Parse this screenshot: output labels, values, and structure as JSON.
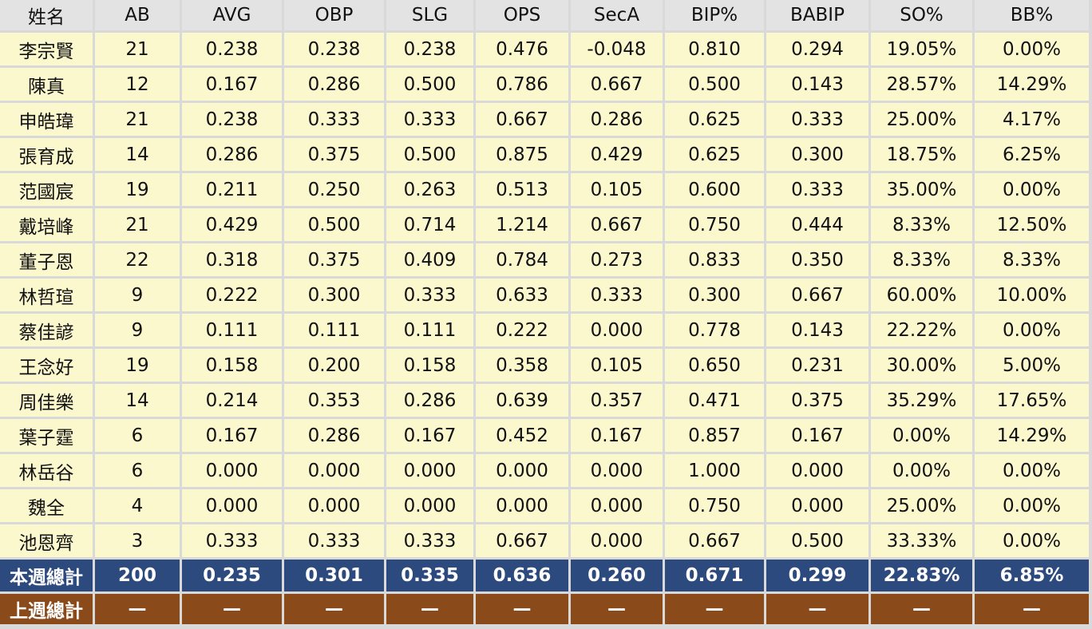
{
  "headers": [
    "姓名",
    "AB",
    "AVG",
    "OBP",
    "SLG",
    "OPS",
    "SecA",
    "BIP%",
    "BABIP",
    "SO%",
    "BB%"
  ],
  "rows": [
    [
      "李宗賢",
      "21",
      "0.238",
      "0.238",
      "0.238",
      "0.476",
      "-0.048",
      "0.810",
      "0.294",
      "19.05%",
      "0.00%"
    ],
    [
      "陳真",
      "12",
      "0.167",
      "0.286",
      "0.500",
      "0.786",
      "0.667",
      "0.500",
      "0.143",
      "28.57%",
      "14.29%"
    ],
    [
      "申皓瑋",
      "21",
      "0.238",
      "0.333",
      "0.333",
      "0.667",
      "0.286",
      "0.625",
      "0.333",
      "25.00%",
      "4.17%"
    ],
    [
      "張育成",
      "14",
      "0.286",
      "0.375",
      "0.500",
      "0.875",
      "0.429",
      "0.625",
      "0.300",
      "18.75%",
      "6.25%"
    ],
    [
      "范國宸",
      "19",
      "0.211",
      "0.250",
      "0.263",
      "0.513",
      "0.105",
      "0.600",
      "0.333",
      "35.00%",
      "0.00%"
    ],
    [
      "戴培峰",
      "21",
      "0.429",
      "0.500",
      "0.714",
      "1.214",
      "0.667",
      "0.750",
      "0.444",
      "8.33%",
      "12.50%"
    ],
    [
      "董子恩",
      "22",
      "0.318",
      "0.375",
      "0.409",
      "0.784",
      "0.273",
      "0.833",
      "0.350",
      "8.33%",
      "8.33%"
    ],
    [
      "林哲瑄",
      "9",
      "0.222",
      "0.300",
      "0.333",
      "0.633",
      "0.333",
      "0.300",
      "0.667",
      "60.00%",
      "10.00%"
    ],
    [
      "蔡佳諺",
      "9",
      "0.111",
      "0.111",
      "0.111",
      "0.222",
      "0.000",
      "0.778",
      "0.143",
      "22.22%",
      "0.00%"
    ],
    [
      "王念好",
      "19",
      "0.158",
      "0.200",
      "0.158",
      "0.358",
      "0.105",
      "0.650",
      "0.231",
      "30.00%",
      "5.00%"
    ],
    [
      "周佳樂",
      "14",
      "0.214",
      "0.353",
      "0.286",
      "0.639",
      "0.357",
      "0.471",
      "0.375",
      "35.29%",
      "17.65%"
    ],
    [
      "葉子霆",
      "6",
      "0.167",
      "0.286",
      "0.167",
      "0.452",
      "0.167",
      "0.857",
      "0.167",
      "0.00%",
      "14.29%"
    ],
    [
      "林岳谷",
      "6",
      "0.000",
      "0.000",
      "0.000",
      "0.000",
      "0.000",
      "1.000",
      "0.000",
      "0.00%",
      "0.00%"
    ],
    [
      "魏全",
      "4",
      "0.000",
      "0.000",
      "0.000",
      "0.000",
      "0.000",
      "0.750",
      "0.000",
      "25.00%",
      "0.00%"
    ],
    [
      "池恩齊",
      "3",
      "0.333",
      "0.333",
      "0.333",
      "0.667",
      "0.000",
      "0.667",
      "0.500",
      "33.33%",
      "0.00%"
    ]
  ],
  "this_week_total": [
    "本週總計",
    "200",
    "0.235",
    "0.301",
    "0.335",
    "0.636",
    "0.260",
    "0.671",
    "0.299",
    "22.83%",
    "6.85%"
  ],
  "last_week_total": [
    "上週總計",
    "—",
    "—",
    "—",
    "—",
    "—",
    "—",
    "—",
    "—",
    "—",
    "—"
  ],
  "colors": {
    "header_bg": "#e3e3e3",
    "row_bg": "#fcf8cd",
    "this_week_bg": "#2c4a7e",
    "last_week_bg": "#8b4a1a",
    "grid": "#d9d9d9"
  }
}
